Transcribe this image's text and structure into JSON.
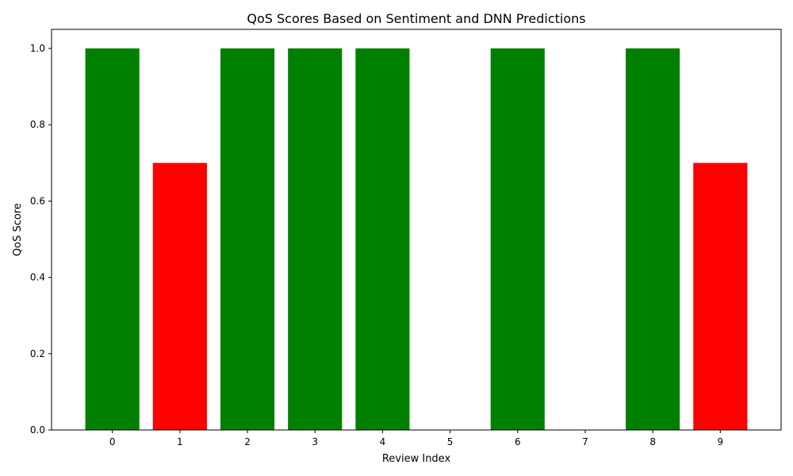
{
  "chart_data": {
    "type": "bar",
    "title": "QoS Scores Based on Sentiment and DNN Predictions",
    "xlabel": "Review Index",
    "ylabel": "QoS Score",
    "categories": [
      "0",
      "1",
      "2",
      "3",
      "4",
      "5",
      "6",
      "7",
      "8",
      "9"
    ],
    "values": [
      1.0,
      0.7,
      1.0,
      1.0,
      1.0,
      0.0,
      1.0,
      0.0,
      1.0,
      0.7
    ],
    "bar_colors": [
      "#008000",
      "#ff0000",
      "#008000",
      "#008000",
      "#008000",
      "#008000",
      "#008000",
      "#008000",
      "#008000",
      "#ff0000"
    ],
    "ylim": [
      0,
      1.05
    ],
    "yticks": [
      "0.0",
      "0.2",
      "0.4",
      "0.6",
      "0.8",
      "1.0"
    ],
    "grid": false
  }
}
